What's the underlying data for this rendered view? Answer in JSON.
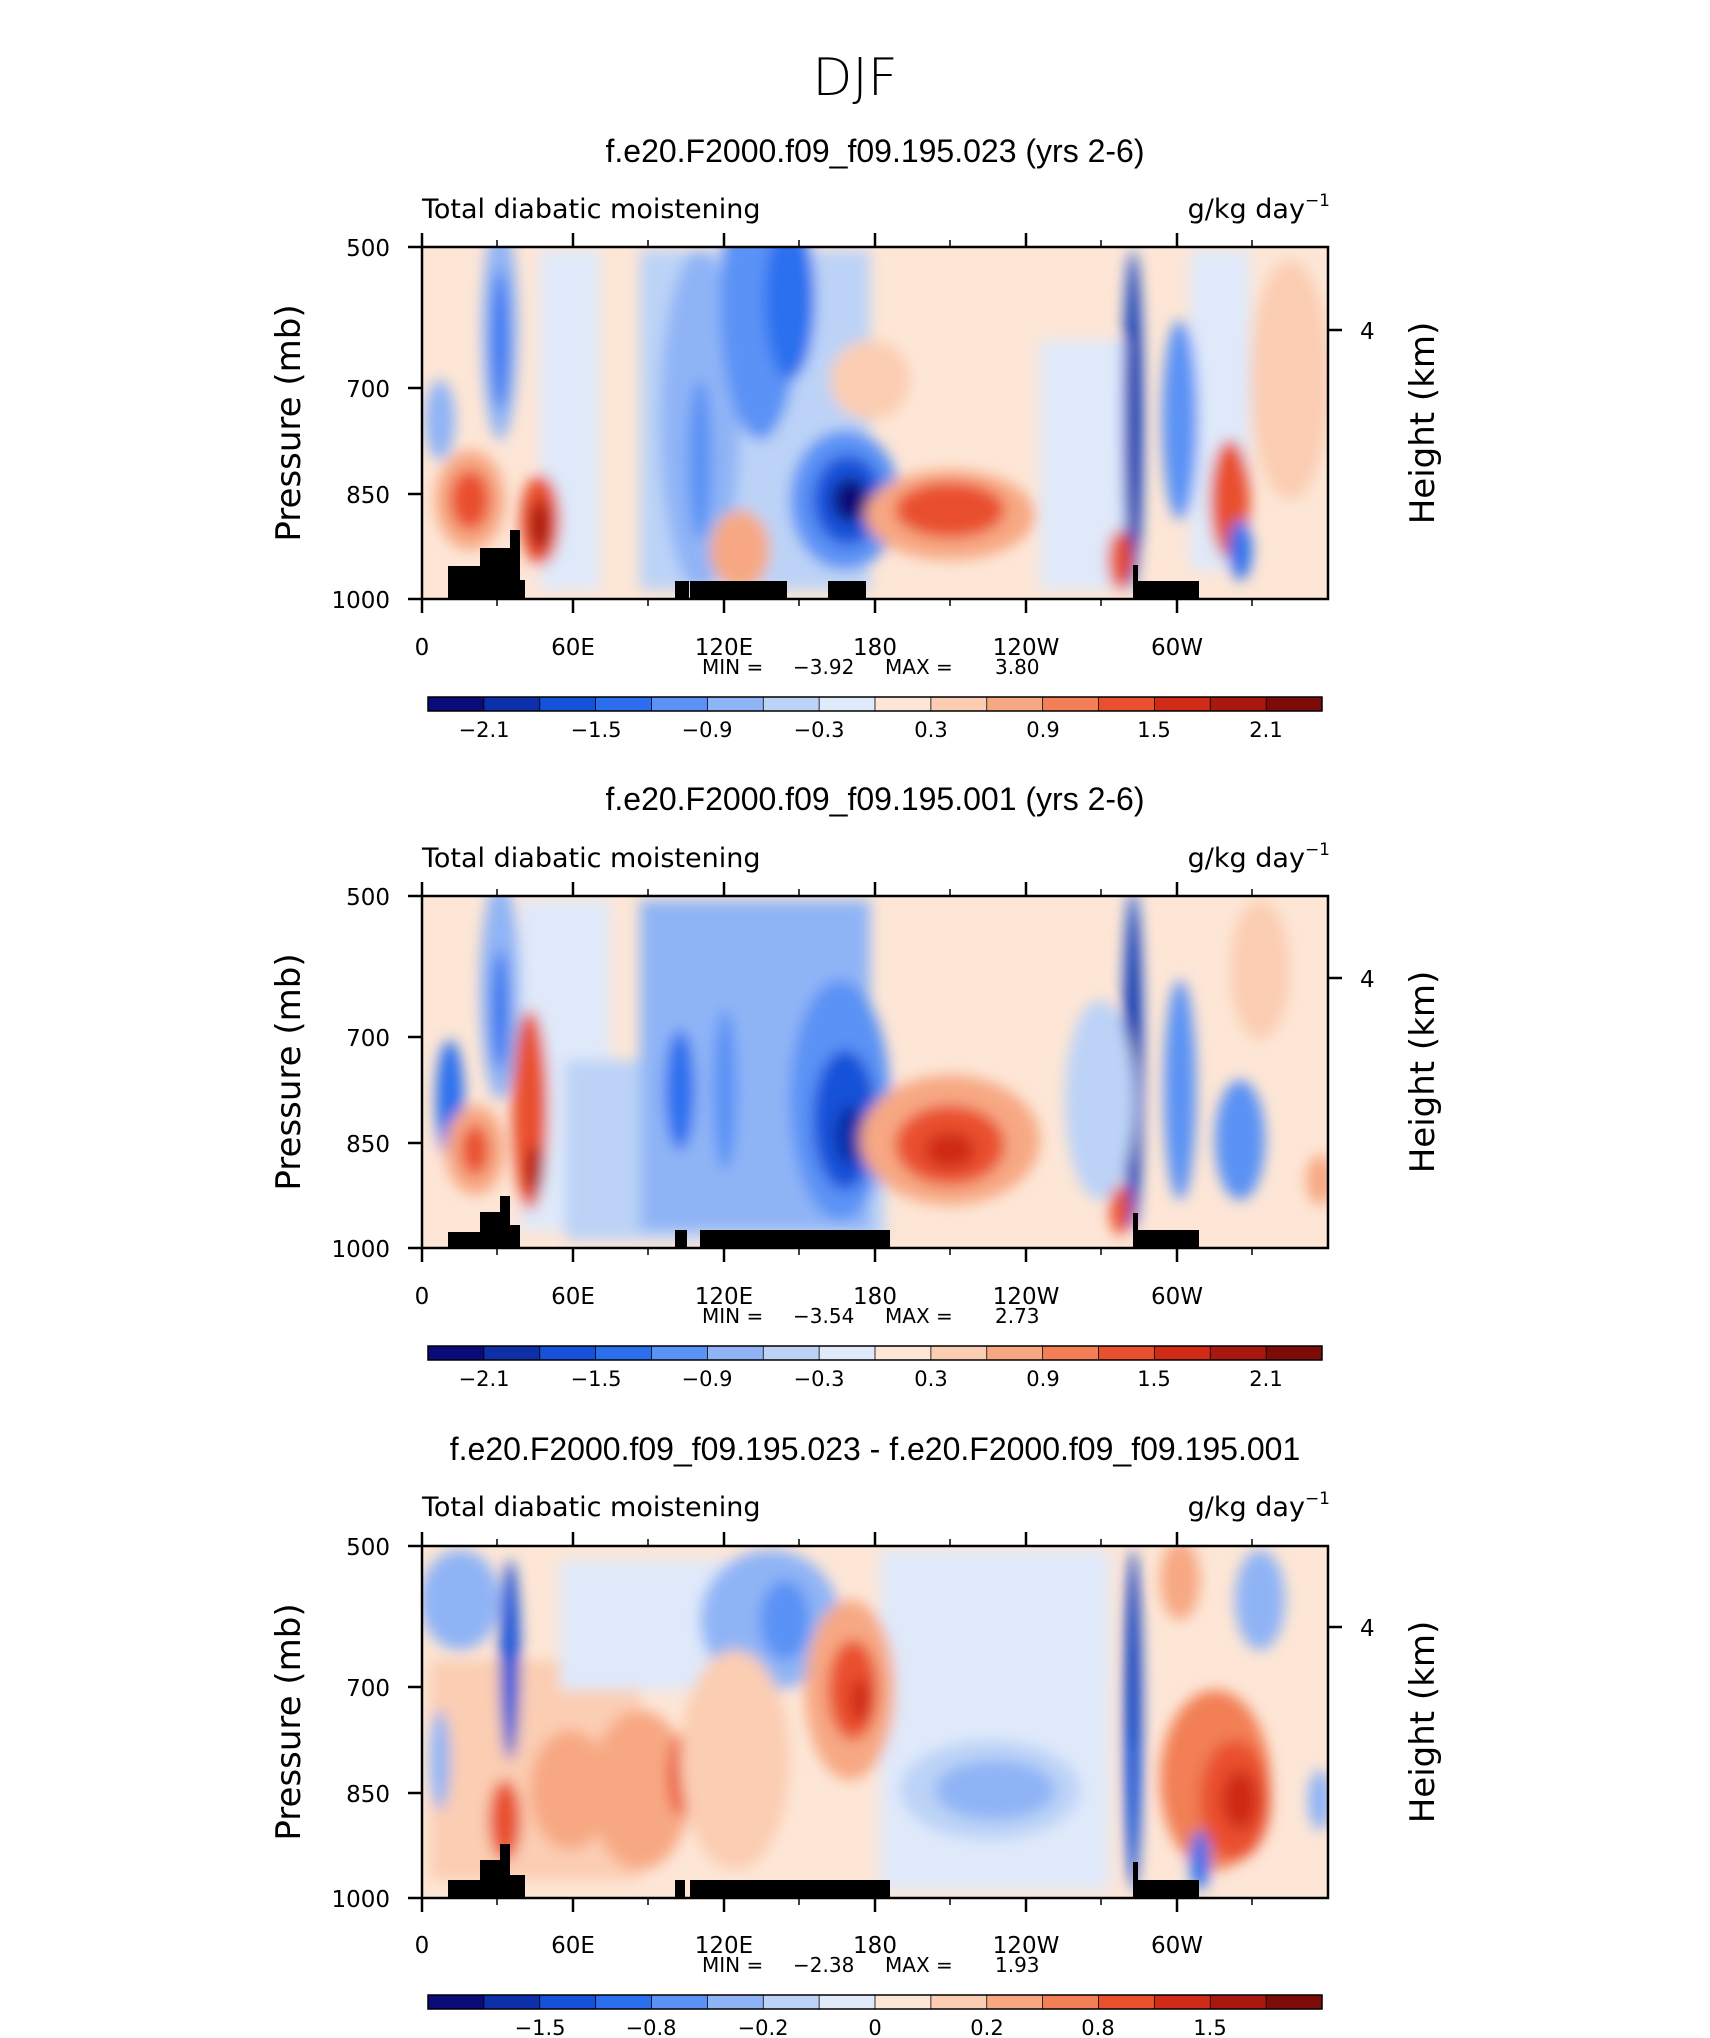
{
  "page_title": "DJF",
  "chart_data": [
    {
      "type": "heatmap",
      "title": "f.e20.F2000.f09_f09.195.023 (yrs 2-6)",
      "left_label": "Total diabatic moistening",
      "right_label_base": "g/kg day",
      "right_label_exp": "−1",
      "ylabel": "Pressure (mb)",
      "ylabel_right": "Height (km)",
      "yticks": [
        "500",
        "700",
        "850",
        "1000"
      ],
      "yticks_right": [
        "4"
      ],
      "xticks": [
        "0",
        "60E",
        "120E",
        "180",
        "120W",
        "60W"
      ],
      "min_label": "MIN =",
      "min_value": "−3.92",
      "max_label": "MAX =",
      "max_value": "3.80",
      "colorbar_labels": [
        "−2.1",
        "−1.5",
        "−0.9",
        "−0.3",
        "0.3",
        "0.9",
        "1.5",
        "2.1"
      ]
    },
    {
      "type": "heatmap",
      "title": "f.e20.F2000.f09_f09.195.001 (yrs 2-6)",
      "left_label": "Total diabatic moistening",
      "right_label_base": "g/kg day",
      "right_label_exp": "−1",
      "ylabel": "Pressure (mb)",
      "ylabel_right": "Height (km)",
      "yticks": [
        "500",
        "700",
        "850",
        "1000"
      ],
      "yticks_right": [
        "4"
      ],
      "xticks": [
        "0",
        "60E",
        "120E",
        "180",
        "120W",
        "60W"
      ],
      "min_label": "MIN =",
      "min_value": "−3.54",
      "max_label": "MAX =",
      "max_value": "2.73",
      "colorbar_labels": [
        "−2.1",
        "−1.5",
        "−0.9",
        "−0.3",
        "0.3",
        "0.9",
        "1.5",
        "2.1"
      ]
    },
    {
      "type": "heatmap",
      "title": "f.e20.F2000.f09_f09.195.023 - f.e20.F2000.f09_f09.195.001",
      "left_label": "Total diabatic moistening",
      "right_label_base": "g/kg day",
      "right_label_exp": "−1",
      "ylabel": "Pressure (mb)",
      "ylabel_right": "Height (km)",
      "yticks": [
        "500",
        "700",
        "850",
        "1000"
      ],
      "yticks_right": [
        "4"
      ],
      "xticks": [
        "0",
        "60E",
        "120E",
        "180",
        "120W",
        "60W"
      ],
      "min_label": "MIN =",
      "min_value": "−2.38",
      "max_label": "MAX =",
      "max_value": "1.93",
      "colorbar_labels": [
        "−1.5",
        "−0.8",
        "−0.2",
        "0",
        "0.2",
        "0.8",
        "1.5"
      ]
    }
  ],
  "colors": {
    "palette": [
      "#0a0a78",
      "#0d2fa8",
      "#1551d9",
      "#2b6fef",
      "#5a92f5",
      "#8fb4f6",
      "#bcd3f7",
      "#dfe9fa",
      "#fde6d6",
      "#fbcdb2",
      "#f7a883",
      "#f27f55",
      "#e9502d",
      "#cf2b17",
      "#a8180f",
      "#7d0b07"
    ]
  }
}
